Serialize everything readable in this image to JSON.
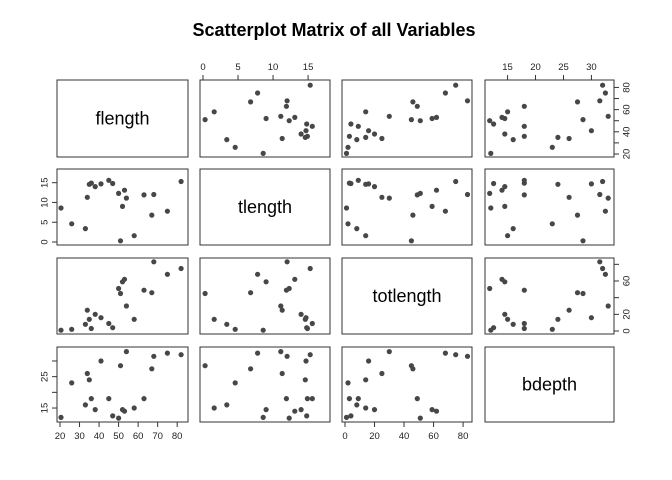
{
  "chart_data": {
    "type": "scatter",
    "title": "Scatterplot Matrix of all Variables",
    "variables": [
      "flength",
      "tlength",
      "totlength",
      "bdepth"
    ],
    "ranges": {
      "flength": [
        20,
        84
      ],
      "tlength": [
        0,
        17.7
      ],
      "totlength": [
        0,
        84
      ],
      "bdepth": [
        11.5,
        33.5
      ]
    },
    "ticks": {
      "flength": [
        20,
        30,
        40,
        50,
        60,
        70,
        80
      ],
      "tlength": [
        0,
        5,
        10,
        15
      ],
      "totlength": [
        0,
        20,
        40,
        60,
        80
      ],
      "bdepth": [
        15,
        20,
        25,
        30
      ]
    },
    "tick_labels_shown": {
      "flength": [
        "20",
        "30",
        "40",
        "50",
        "60",
        "70",
        "80"
      ],
      "tlength": [
        "0",
        "5",
        "10",
        "15"
      ],
      "totlength": [
        "0",
        "20",
        "40",
        "60",
        "80"
      ],
      "bdepth": [
        "15",
        "25"
      ]
    },
    "right_axis_labels": {
      "row1": [
        "20",
        "40",
        "60",
        "80"
      ],
      "row3": [
        "0",
        "20",
        "60"
      ]
    },
    "observations": [
      {
        "flength": 20.5,
        "tlength": 8.6,
        "totlength": 1,
        "bdepth": 12.0
      },
      {
        "flength": 26,
        "tlength": 4.6,
        "totlength": 2,
        "bdepth": 23.0
      },
      {
        "flength": 33,
        "tlength": 3.4,
        "totlength": 8,
        "bdepth": 16.0
      },
      {
        "flength": 34,
        "tlength": 11.3,
        "totlength": 25,
        "bdepth": 26.0
      },
      {
        "flength": 35,
        "tlength": 14.6,
        "totlength": 14,
        "bdepth": 24.0
      },
      {
        "flength": 36,
        "tlength": 14.9,
        "totlength": 3,
        "bdepth": 18.0
      },
      {
        "flength": 38,
        "tlength": 14.0,
        "totlength": 20,
        "bdepth": 14.5
      },
      {
        "flength": 41,
        "tlength": 14.7,
        "totlength": 16,
        "bdepth": 30.0
      },
      {
        "flength": 45,
        "tlength": 15.6,
        "totlength": 9,
        "bdepth": 18.0
      },
      {
        "flength": 47,
        "tlength": 14.8,
        "totlength": 4,
        "bdepth": 12.5
      },
      {
        "flength": 50,
        "tlength": 12.3,
        "totlength": 51,
        "bdepth": 11.8
      },
      {
        "flength": 51,
        "tlength": 0.3,
        "totlength": 45,
        "bdepth": 28.5
      },
      {
        "flength": 52,
        "tlength": 9.0,
        "totlength": 59,
        "bdepth": 14.5
      },
      {
        "flength": 53,
        "tlength": 13.1,
        "totlength": 62,
        "bdepth": 14.0
      },
      {
        "flength": 54,
        "tlength": 11.1,
        "totlength": 30,
        "bdepth": 33.0
      },
      {
        "flength": 58,
        "tlength": 1.6,
        "totlength": 14,
        "bdepth": 15.0
      },
      {
        "flength": 63,
        "tlength": 11.9,
        "totlength": 49,
        "bdepth": 18.0
      },
      {
        "flength": 67,
        "tlength": 6.8,
        "totlength": 46,
        "bdepth": 27.5
      },
      {
        "flength": 68,
        "tlength": 12.0,
        "totlength": 83,
        "bdepth": 31.5
      },
      {
        "flength": 75,
        "tlength": 7.8,
        "totlength": 68,
        "bdepth": 32.5
      },
      {
        "flength": 82,
        "tlength": 15.3,
        "totlength": 75,
        "bdepth": 32.0
      }
    ]
  }
}
